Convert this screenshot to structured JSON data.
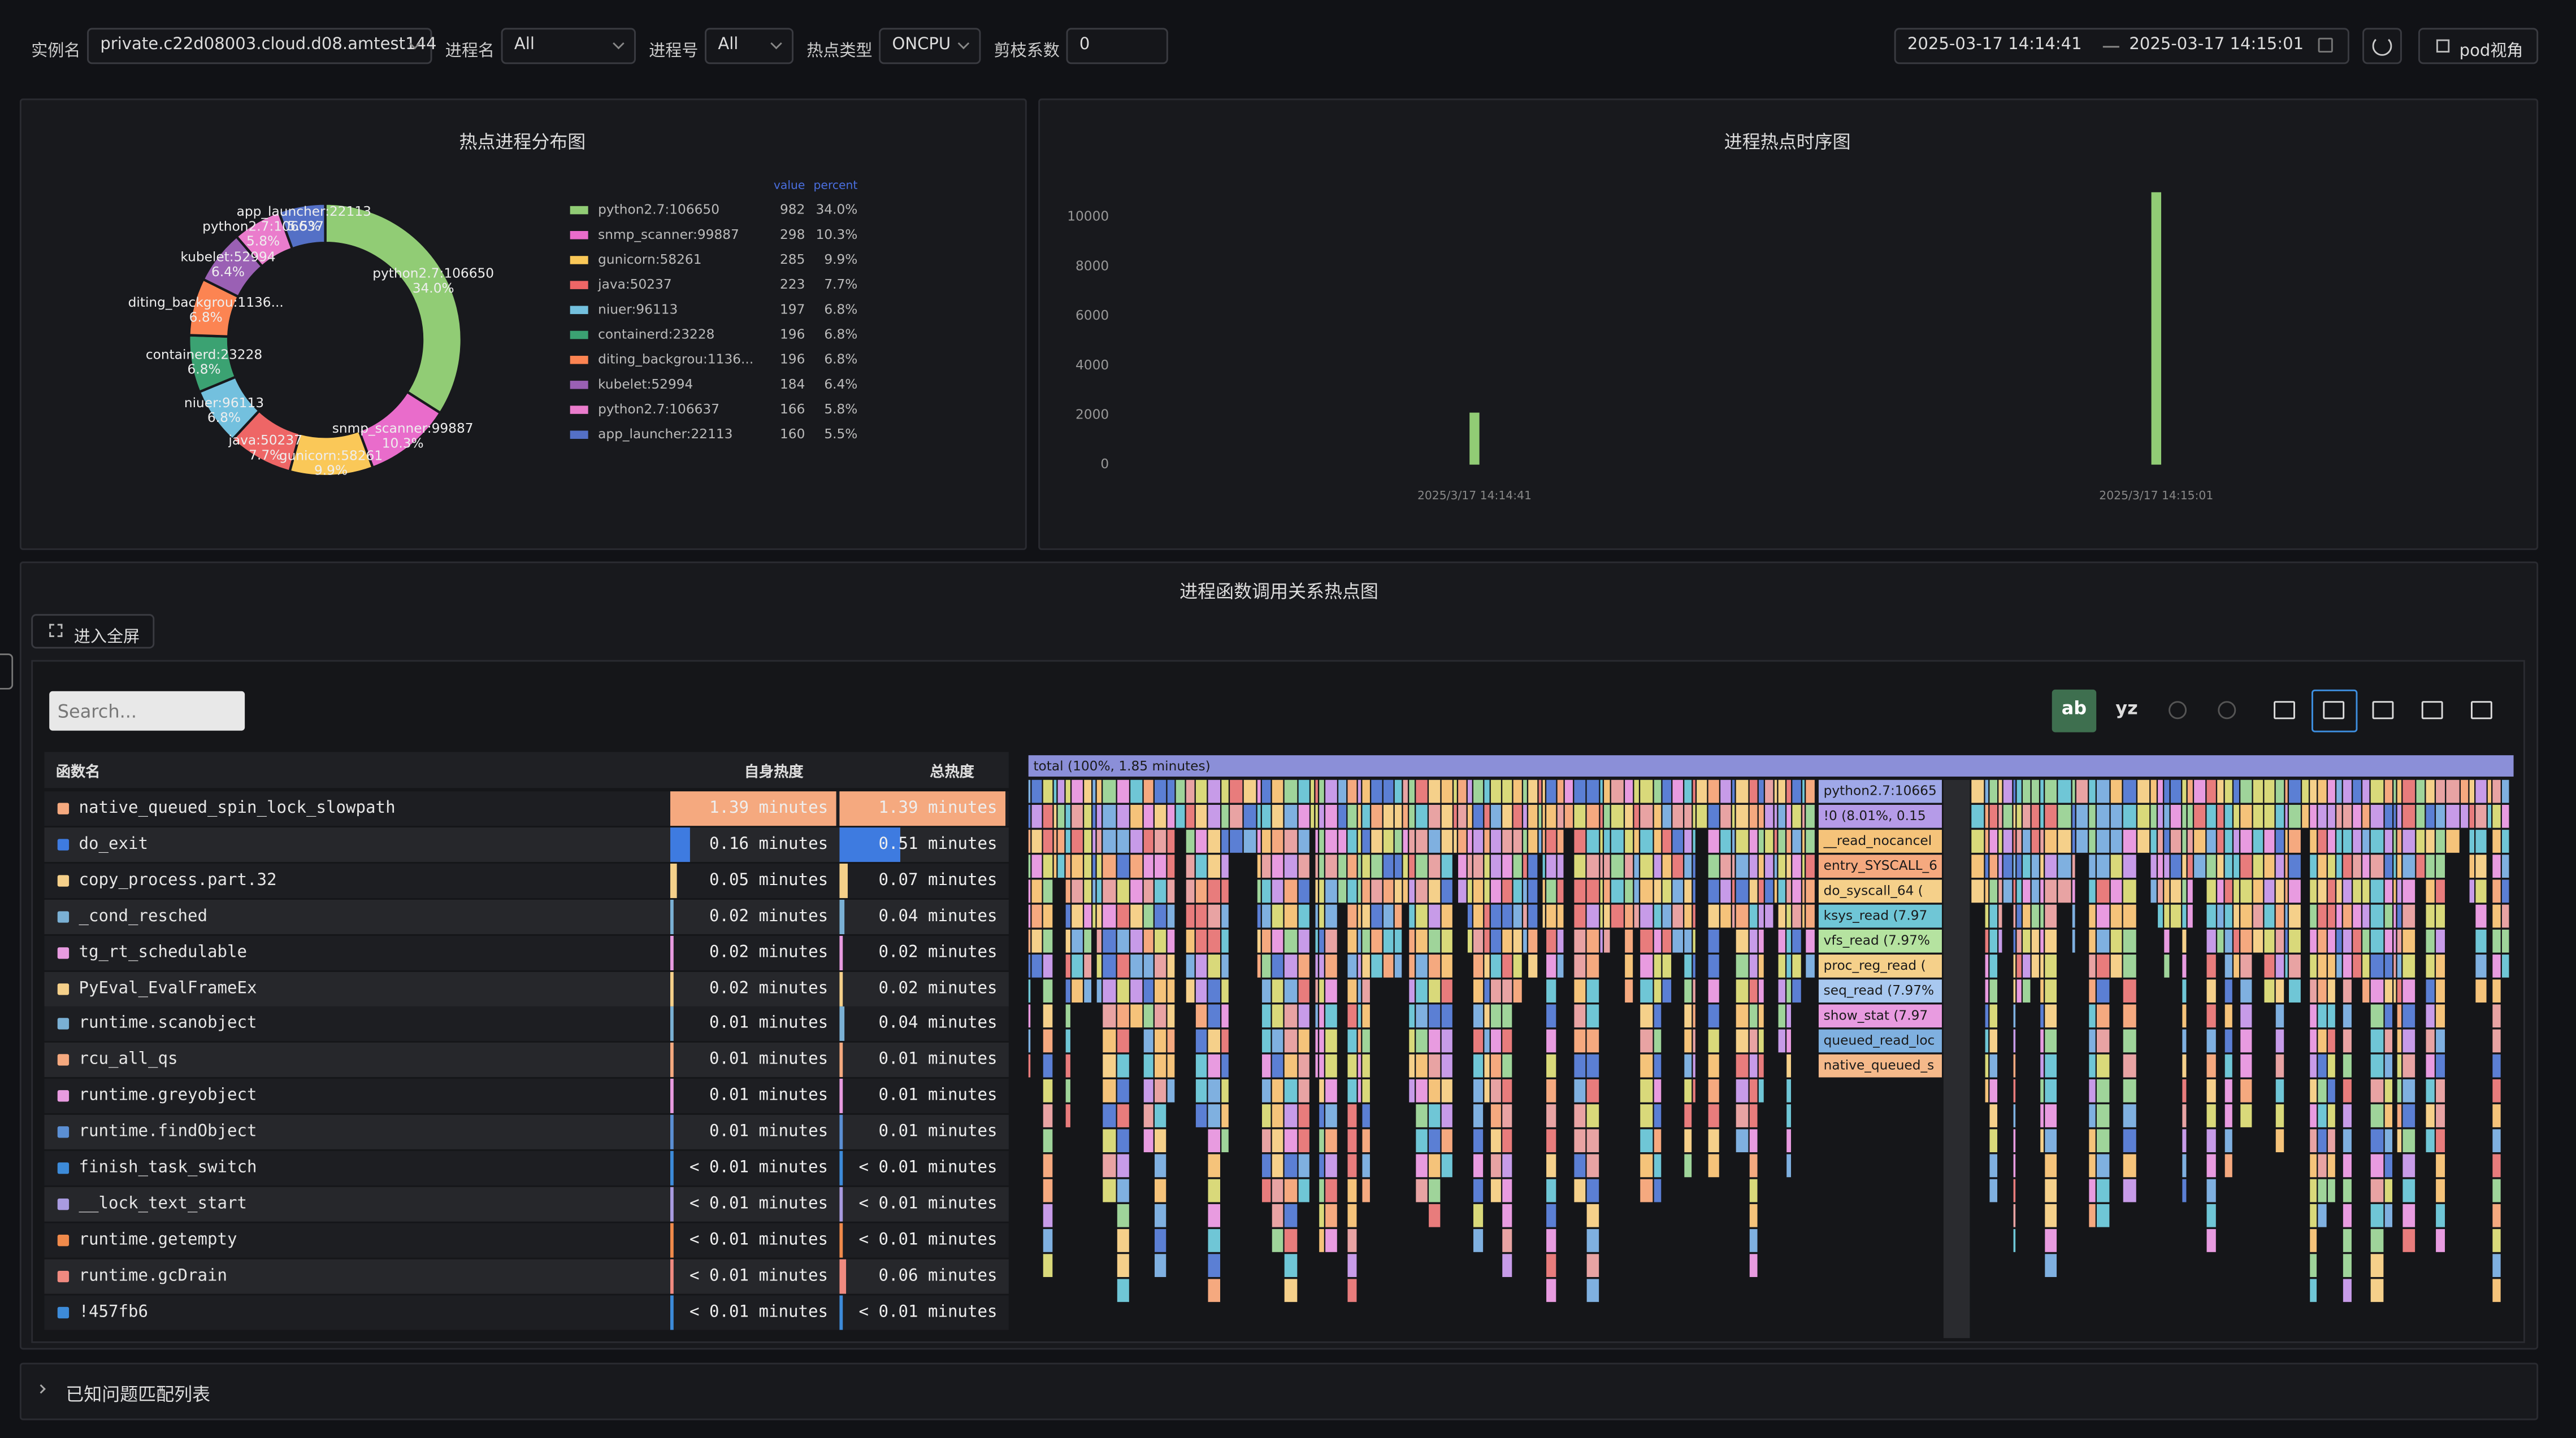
{
  "toolbar": {
    "instance_label": "实例名",
    "instance": "private.c22d08003.cloud.d08.amtest144",
    "process_label": "进程名",
    "process": "All",
    "pid_label": "进程号",
    "pid": "All",
    "hot_type_label": "热点类型",
    "hot_type": "ONCPU",
    "prune_label": "剪枝系数",
    "prune": "0",
    "start": "2025-03-17 14:14:41",
    "end": "2025-03-17 14:15:01",
    "pod_view": "pod视角"
  },
  "donut": {
    "type": "pie",
    "title": "热点进程分布图",
    "value_header": "value",
    "percent_header": "percent",
    "categories": [
      "python2.7:106650",
      "snmp_scanner:99887",
      "gunicorn:58261",
      "java:50237",
      "niuer:96113",
      "containerd:23228",
      "diting_backgrou:1136...",
      "kubelet:52994",
      "python2.7:106637",
      "app_launcher:22113"
    ],
    "values": [
      982,
      298,
      285,
      223,
      197,
      196,
      196,
      184,
      166,
      160
    ],
    "percents": [
      34.0,
      10.3,
      9.9,
      7.7,
      6.8,
      6.8,
      6.8,
      6.4,
      5.8,
      5.5
    ],
    "percent_labels": [
      "34.0%",
      "10.3%",
      "9.9%",
      "7.7%",
      "6.8%",
      "6.8%",
      "6.8%",
      "6.4%",
      "5.8%",
      "5.5%"
    ],
    "colors": [
      "#91cc75",
      "#e96ccb",
      "#fac858",
      "#ee6666",
      "#73c0de",
      "#3ba272",
      "#fc8452",
      "#9a60b4",
      "#ea7ccc",
      "#5470c6"
    ]
  },
  "timeline": {
    "type": "bar",
    "title": "进程热点时序图",
    "categories": [
      "2025/3/17 14:14:41",
      "2025/3/17 14:15:01"
    ],
    "values": [
      2100,
      11000
    ],
    "color": "#91cc75",
    "ylim": [
      0,
      12000
    ],
    "yticks": [
      0,
      2000,
      4000,
      6000,
      8000,
      10000
    ]
  },
  "flame": {
    "title": "进程函数调用关系热点图",
    "fullscreen": "进入全屏",
    "search_placeholder": "Search...",
    "btn_ab": "ab",
    "btn_yz": "yz",
    "columns": {
      "name": "函数名",
      "self": "自身热度",
      "total": "总热度"
    },
    "rows": [
      {
        "name": "native_queued_spin_lock_slowpath",
        "color": "#f5a97f",
        "self": 1.39,
        "self_label": "1.39 minutes",
        "total": 1.39,
        "total_label": "1.39 minutes"
      },
      {
        "name": "do_exit",
        "color": "#3e7be0",
        "self": 0.16,
        "self_label": "0.16 minutes",
        "total": 0.51,
        "total_label": "0.51 minutes"
      },
      {
        "name": "copy_process.part.32",
        "color": "#f5d08a",
        "self": 0.05,
        "self_label": "0.05 minutes",
        "total": 0.07,
        "total_label": "0.07 minutes"
      },
      {
        "name": "_cond_resched",
        "color": "#7ab0d4",
        "self": 0.02,
        "self_label": "0.02 minutes",
        "total": 0.04,
        "total_label": "0.04 minutes"
      },
      {
        "name": "tg_rt_schedulable",
        "color": "#e89be0",
        "self": 0.02,
        "self_label": "0.02 minutes",
        "total": 0.02,
        "total_label": "0.02 minutes"
      },
      {
        "name": "PyEval_EvalFrameEx",
        "color": "#f5d08a",
        "self": 0.02,
        "self_label": "0.02 minutes",
        "total": 0.02,
        "total_label": "0.02 minutes"
      },
      {
        "name": "runtime.scanobject",
        "color": "#7ab0d4",
        "self": 0.01,
        "self_label": "0.01 minutes",
        "total": 0.04,
        "total_label": "0.04 minutes"
      },
      {
        "name": "rcu_all_qs",
        "color": "#f5a97f",
        "self": 0.01,
        "self_label": "0.01 minutes",
        "total": 0.01,
        "total_label": "0.01 minutes"
      },
      {
        "name": "runtime.greyobject",
        "color": "#e89be0",
        "self": 0.01,
        "self_label": "0.01 minutes",
        "total": 0.01,
        "total_label": "0.01 minutes"
      },
      {
        "name": "runtime.findObject",
        "color": "#5b8fd4",
        "self": 0.01,
        "self_label": "0.01 minutes",
        "total": 0.01,
        "total_label": "0.01 minutes"
      },
      {
        "name": "finish_task_switch",
        "color": "#3d8bd9",
        "self": null,
        "self_label": "< 0.01 minutes",
        "total": null,
        "total_label": "< 0.01 minutes"
      },
      {
        "name": "__lock_text_start",
        "color": "#a99be0",
        "self": null,
        "self_label": "< 0.01 minutes",
        "total": null,
        "total_label": "< 0.01 minutes"
      },
      {
        "name": "runtime.getempty",
        "color": "#f08a4b",
        "self": null,
        "self_label": "< 0.01 minutes",
        "total": null,
        "total_label": "< 0.01 minutes"
      },
      {
        "name": "runtime.gcDrain",
        "color": "#f08a80",
        "self": null,
        "self_label": "< 0.01 minutes",
        "total": 0.06,
        "total_label": "0.06 minutes"
      },
      {
        "name": "!457fb6",
        "color": "#3d8bd9",
        "self": null,
        "self_label": "< 0.01 minutes",
        "total": null,
        "total_label": "< 0.01 minutes"
      }
    ],
    "total_frame": "total (100%, 1.85 minutes)",
    "stack": [
      "python2.7:10665",
      "!0 (8.01%, 0.15",
      "__read_nocancel",
      "entry_SYSCALL_6",
      "do_syscall_64 (",
      "ksys_read (7.97",
      "vfs_read (7.97%",
      "proc_reg_read (",
      "seq_read (7.97%",
      "show_stat (7.97",
      "queued_read_loc",
      "native_queued_s"
    ]
  },
  "known_issues": "已知问题匹配列表"
}
